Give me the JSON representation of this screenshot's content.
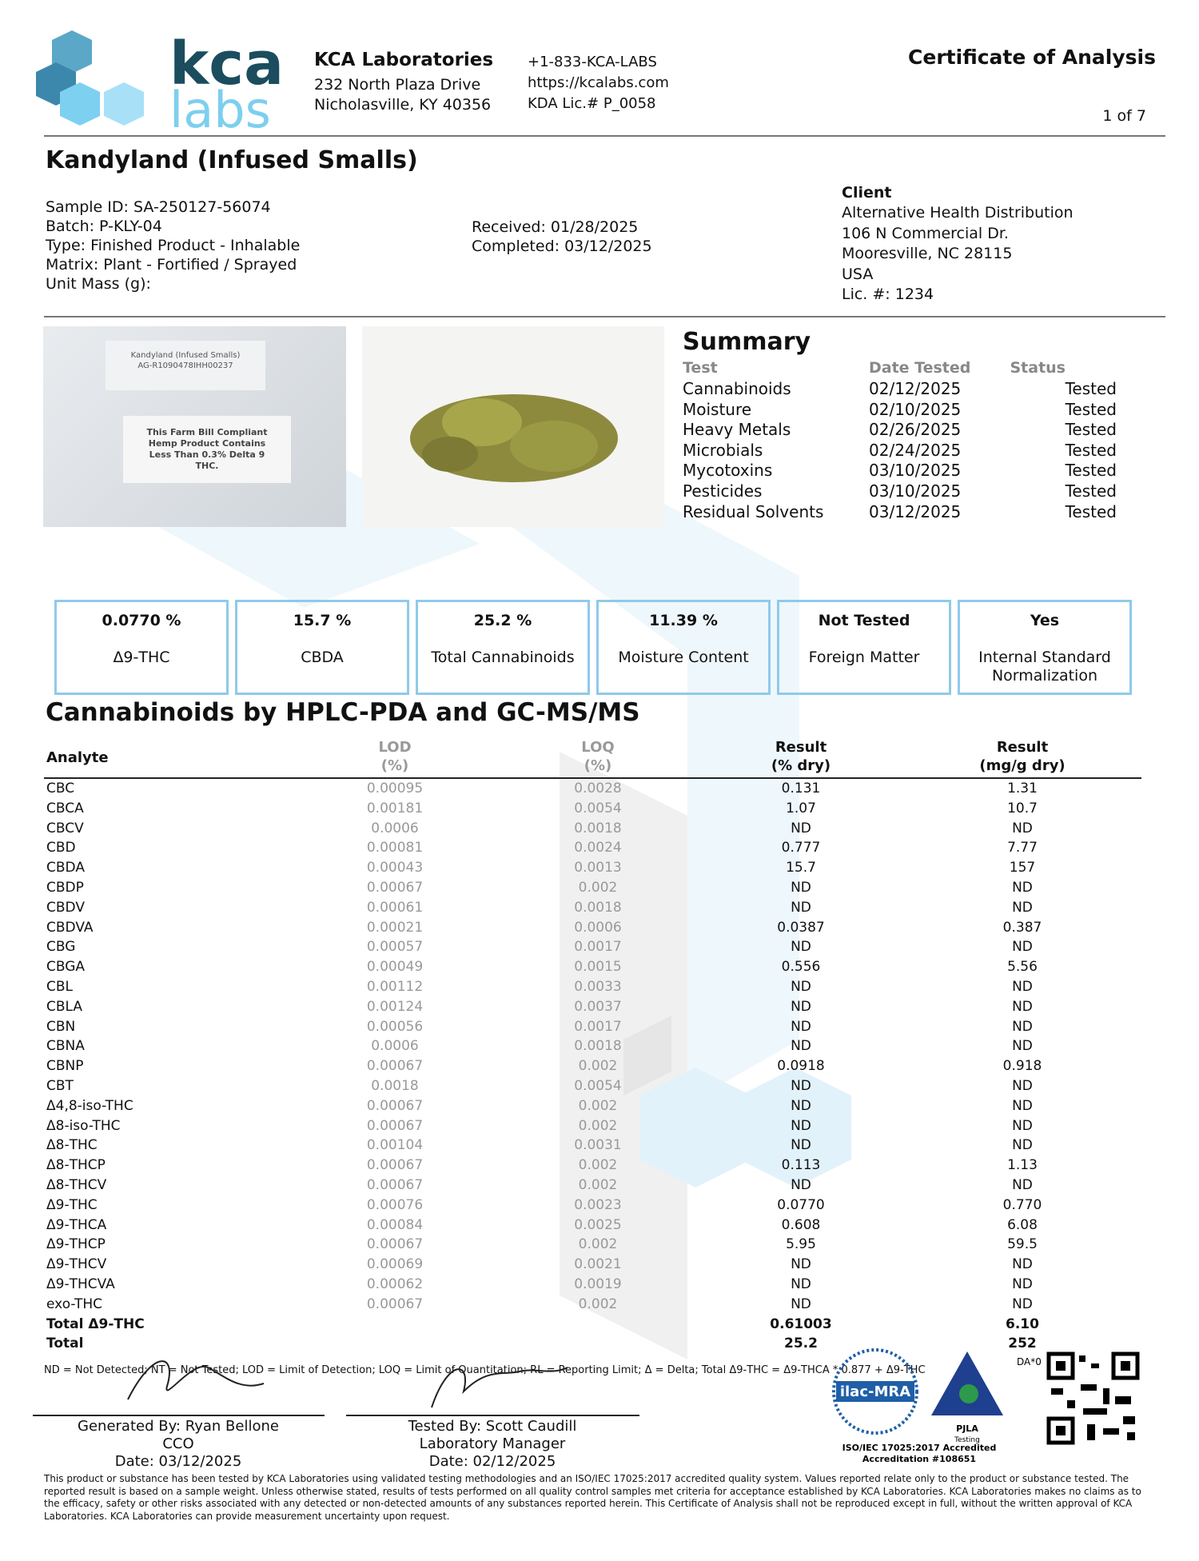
{
  "header": {
    "logo_top": "kca",
    "logo_bottom": "labs",
    "company": "KCA Laboratories",
    "address_1": "232 North Plaza Drive",
    "address_2": "Nicholasville, KY 40356",
    "phone": "+1-833-KCA-LABS",
    "website": "https://kcalabs.com",
    "license": "KDA Lic.# P_0058",
    "doc_title": "Certificate of Analysis",
    "page": "1 of 7"
  },
  "product": {
    "title": "Kandyland (Infused Smalls)",
    "sample_id": "Sample ID: SA-250127-56074",
    "batch": "Batch: P-KLY-04",
    "type": "Type: Finished Product - Inhalable",
    "matrix": "Matrix: Plant - Fortified / Sprayed",
    "unit_mass": "Unit Mass (g):",
    "received": "Received: 01/28/2025",
    "completed": "Completed: 03/12/2025"
  },
  "client": {
    "heading": "Client",
    "lines": [
      "Alternative Health Distribution",
      "106 N Commercial Dr.",
      "Mooresville, NC 28115",
      "USA",
      "Lic. #: 1234"
    ]
  },
  "photo": {
    "label_name": "Kandyland (Infused Smalls)",
    "label_code": "AG-R1090478IHH00237",
    "label_notice": "This Farm Bill Compliant Hemp Product Contains Less Than 0.3% Delta 9 THC."
  },
  "summary": {
    "title": "Summary",
    "columns": [
      "Test",
      "Date Tested",
      "Status"
    ],
    "rows": [
      [
        "Cannabinoids",
        "02/12/2025",
        "Tested"
      ],
      [
        "Moisture",
        "02/10/2025",
        "Tested"
      ],
      [
        "Heavy Metals",
        "02/26/2025",
        "Tested"
      ],
      [
        "Microbials",
        "02/24/2025",
        "Tested"
      ],
      [
        "Mycotoxins",
        "03/10/2025",
        "Tested"
      ],
      [
        "Pesticides",
        "03/10/2025",
        "Tested"
      ],
      [
        "Residual Solvents",
        "03/12/2025",
        "Tested"
      ]
    ]
  },
  "highlights": [
    {
      "value": "0.0770 %",
      "label": "Δ9-THC"
    },
    {
      "value": "15.7 %",
      "label": "CBDA"
    },
    {
      "value": "25.2 %",
      "label": "Total Cannabinoids"
    },
    {
      "value": "11.39 %",
      "label": "Moisture Content"
    },
    {
      "value": "Not Tested",
      "label": "Foreign Matter"
    },
    {
      "value": "Yes",
      "label": "Internal Standard Normalization"
    }
  ],
  "table": {
    "title": "Cannabinoids by HPLC-PDA and GC-MS/MS",
    "columns": [
      [
        "Analyte"
      ],
      [
        "LOD",
        "(%)"
      ],
      [
        "LOQ",
        "(%)"
      ],
      [
        "Result",
        "(% dry)"
      ],
      [
        "Result",
        "(mg/g dry)"
      ]
    ],
    "rows": [
      [
        "CBC",
        "0.00095",
        "0.0028",
        "0.131",
        "1.31"
      ],
      [
        "CBCA",
        "0.00181",
        "0.0054",
        "1.07",
        "10.7"
      ],
      [
        "CBCV",
        "0.0006",
        "0.0018",
        "ND",
        "ND"
      ],
      [
        "CBD",
        "0.00081",
        "0.0024",
        "0.777",
        "7.77"
      ],
      [
        "CBDA",
        "0.00043",
        "0.0013",
        "15.7",
        "157"
      ],
      [
        "CBDP",
        "0.00067",
        "0.002",
        "ND",
        "ND"
      ],
      [
        "CBDV",
        "0.00061",
        "0.0018",
        "ND",
        "ND"
      ],
      [
        "CBDVA",
        "0.00021",
        "0.0006",
        "0.0387",
        "0.387"
      ],
      [
        "CBG",
        "0.00057",
        "0.0017",
        "ND",
        "ND"
      ],
      [
        "CBGA",
        "0.00049",
        "0.0015",
        "0.556",
        "5.56"
      ],
      [
        "CBL",
        "0.00112",
        "0.0033",
        "ND",
        "ND"
      ],
      [
        "CBLA",
        "0.00124",
        "0.0037",
        "ND",
        "ND"
      ],
      [
        "CBN",
        "0.00056",
        "0.0017",
        "ND",
        "ND"
      ],
      [
        "CBNA",
        "0.0006",
        "0.0018",
        "ND",
        "ND"
      ],
      [
        "CBNP",
        "0.00067",
        "0.002",
        "0.0918",
        "0.918"
      ],
      [
        "CBT",
        "0.0018",
        "0.0054",
        "ND",
        "ND"
      ],
      [
        "Δ4,8-iso-THC",
        "0.00067",
        "0.002",
        "ND",
        "ND"
      ],
      [
        "Δ8-iso-THC",
        "0.00067",
        "0.002",
        "ND",
        "ND"
      ],
      [
        "Δ8-THC",
        "0.00104",
        "0.0031",
        "ND",
        "ND"
      ],
      [
        "Δ8-THCP",
        "0.00067",
        "0.002",
        "0.113",
        "1.13"
      ],
      [
        "Δ8-THCV",
        "0.00067",
        "0.002",
        "ND",
        "ND"
      ],
      [
        "Δ9-THC",
        "0.00076",
        "0.0023",
        "0.0770",
        "0.770"
      ],
      [
        "Δ9-THCA",
        "0.00084",
        "0.0025",
        "0.608",
        "6.08"
      ],
      [
        "Δ9-THCP",
        "0.00067",
        "0.002",
        "5.95",
        "59.5"
      ],
      [
        "Δ9-THCV",
        "0.00069",
        "0.0021",
        "ND",
        "ND"
      ],
      [
        "Δ9-THCVA",
        "0.00062",
        "0.0019",
        "ND",
        "ND"
      ],
      [
        "exo-THC",
        "0.00067",
        "0.002",
        "ND",
        "ND"
      ]
    ],
    "totals": [
      [
        "Total Δ9-THC",
        "0.61003",
        "6.10"
      ],
      [
        "Total",
        "25.2",
        "252"
      ]
    ],
    "footnote": "ND = Not Detected; NT = Not Tested; LOD = Limit of Detection; LOQ = Limit of Quantitation; RL = Reporting Limit; Δ = Delta; Total Δ9-THC = Δ9-THCA * 0.877 + Δ9-THC"
  },
  "signatures": [
    {
      "name": "Generated By: Ryan Bellone",
      "role": "CCO",
      "date": "Date: 03/12/2025"
    },
    {
      "name": "Tested By: Scott Caudill",
      "role": "Laboratory Manager",
      "date": "Date: 02/12/2025"
    }
  ],
  "accreditation": {
    "ilac": "ilac-MRA",
    "pjla": "PJLA",
    "pjla_sub": "Testing",
    "iso": "ISO/IEC 17025:2017 Accredited",
    "number": "Accreditation #108651",
    "qr_tag": "DA*0"
  },
  "disclaimer": "This product or substance has been tested by KCA Laboratories using validated testing methodologies and an ISO/IEC 17025:2017 accredited quality system. Values reported relate only to the product or substance tested. The reported result is based on a sample weight. Unless otherwise stated, results of tests performed on all quality control samples met criteria for acceptance established by KCA Laboratories. KCA Laboratories makes no claims as to the efficacy, safety or other risks associated with any detected or non-detected amounts of any substances reported herein. This Certificate of Analysis shall not be reproduced except in full, without the written approval of KCA Laboratories. KCA Laboratories can provide measurement uncertainty upon request."
}
